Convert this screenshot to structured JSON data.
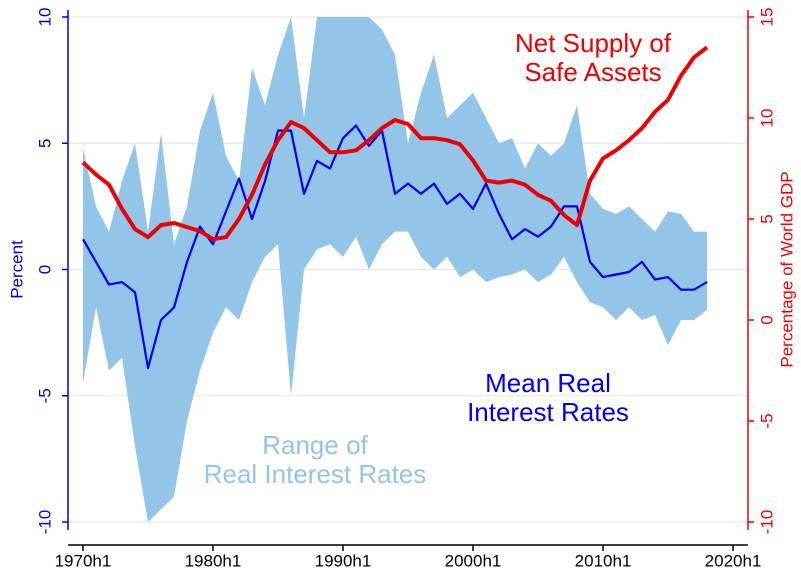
{
  "chart_data": {
    "type": "band-lines",
    "ylabel": "Percent",
    "y2label": "Percentage of World GDP",
    "x": [
      1970,
      1971,
      1972,
      1973,
      1974,
      1975,
      1976,
      1977,
      1978,
      1979,
      1980,
      1981,
      1982,
      1983,
      1984,
      1985,
      1986,
      1987,
      1988,
      1989,
      1990,
      1991,
      1992,
      1993,
      1994,
      1995,
      1996,
      1997,
      1998,
      1999,
      2000,
      2001,
      2002,
      2003,
      2004,
      2005,
      2006,
      2007,
      2008,
      2009,
      2010,
      2011,
      2012,
      2013,
      2014,
      2015,
      2016,
      2017,
      2018
    ],
    "xlim": [
      1968.85,
      2021.15
    ],
    "xticks": [
      {
        "value": 1970,
        "label": "1970h1"
      },
      {
        "value": 1980,
        "label": "1980h1"
      },
      {
        "value": 1990,
        "label": "1990h1"
      },
      {
        "value": 2000,
        "label": "2000h1"
      },
      {
        "value": 2010,
        "label": "2010h1"
      },
      {
        "value": 2020,
        "label": "2020h1"
      }
    ],
    "ylim": [
      -10,
      10
    ],
    "yticks": [
      -10,
      -5,
      0,
      5,
      10
    ],
    "y2lim": [
      -10,
      15
    ],
    "y2ticks": [
      -10,
      -5,
      0,
      5,
      10,
      15
    ],
    "grid": true,
    "axis_color": "#0000ee",
    "axis2_color": "#ee0000",
    "series": [
      {
        "kind": "band",
        "color": "#92c5e8",
        "low": [
          -4.5,
          -1.5,
          -4.0,
          -3.5,
          -7.0,
          -10,
          -9.5,
          -9.0,
          -6.0,
          -4.0,
          -2.5,
          -1.5,
          -2.0,
          -0.5,
          0.5,
          1.0,
          -5.0,
          0.0,
          0.8,
          1.0,
          0.5,
          1.3,
          0.0,
          1.0,
          1.5,
          1.5,
          0.5,
          0.0,
          0.5,
          -0.3,
          0.0,
          -0.5,
          -0.3,
          -0.2,
          0.0,
          -0.5,
          -0.2,
          0.5,
          -0.5,
          -1.3,
          -1.5,
          -2.0,
          -1.5,
          -2.0,
          -1.8,
          -3.0,
          -2.0,
          -2.0,
          -1.6
        ],
        "values": [
          4.8,
          2.5,
          1.5,
          3.5,
          5.0,
          1.5,
          5.4,
          1.0,
          2.5,
          5.5,
          7.0,
          4.5,
          3.5,
          8.0,
          6.5,
          8.5,
          10,
          6.0,
          10,
          10,
          10,
          10,
          10,
          9.5,
          8.5,
          5.0,
          7.0,
          8.5,
          6.0,
          6.5,
          7.0,
          6.0,
          5.0,
          5.2,
          4.0,
          5.0,
          4.5,
          5.0,
          6.5,
          3.0,
          2.4,
          2.2,
          2.5,
          2.0,
          1.5,
          2.3,
          2.2,
          1.5,
          1.5
        ]
      },
      {
        "kind": "line",
        "color": "#0000ee",
        "values": [
          1.2,
          0.3,
          -0.6,
          -0.5,
          -0.9,
          -3.9,
          -2.0,
          -1.5,
          0.3,
          1.7,
          1.0,
          2.3,
          3.6,
          2.0,
          3.5,
          5.5,
          5.5,
          3.0,
          4.3,
          4.0,
          5.2,
          5.7,
          4.9,
          5.5,
          3.0,
          3.4,
          3.0,
          3.4,
          2.6,
          3.0,
          2.4,
          3.4,
          2.2,
          1.2,
          1.6,
          1.3,
          1.7,
          2.5,
          2.5,
          0.3,
          -0.3,
          -0.2,
          -0.1,
          0.3,
          -0.4,
          -0.3,
          -0.8,
          -0.8,
          -0.5
        ]
      },
      {
        "kind": "line",
        "axis": "y2",
        "color": "#ee0000",
        "values": [
          7.8,
          7.2,
          6.7,
          5.5,
          4.5,
          4.1,
          4.7,
          4.8,
          4.6,
          4.4,
          4.0,
          4.1,
          5.0,
          6.2,
          7.7,
          8.9,
          9.8,
          9.5,
          8.9,
          8.3,
          8.3,
          8.4,
          8.9,
          9.5,
          9.9,
          9.7,
          9.0,
          9.0,
          8.9,
          8.7,
          7.9,
          6.9,
          6.8,
          6.9,
          6.7,
          6.2,
          5.9,
          5.2,
          4.7,
          6.9,
          8.0,
          8.4,
          8.9,
          9.5,
          10.3,
          10.9,
          12.1,
          13.0,
          13.5
        ]
      }
    ],
    "annotations": [
      {
        "lines": [
          "Net Supply of",
          "Safe Assets"
        ],
        "color": "#ee0000"
      },
      {
        "lines": [
          "Mean Real",
          "Interest Rates"
        ],
        "color": "#0000ee"
      },
      {
        "lines": [
          "Range of",
          "Real Interest Rates"
        ],
        "color": "#92c5e8"
      }
    ]
  }
}
